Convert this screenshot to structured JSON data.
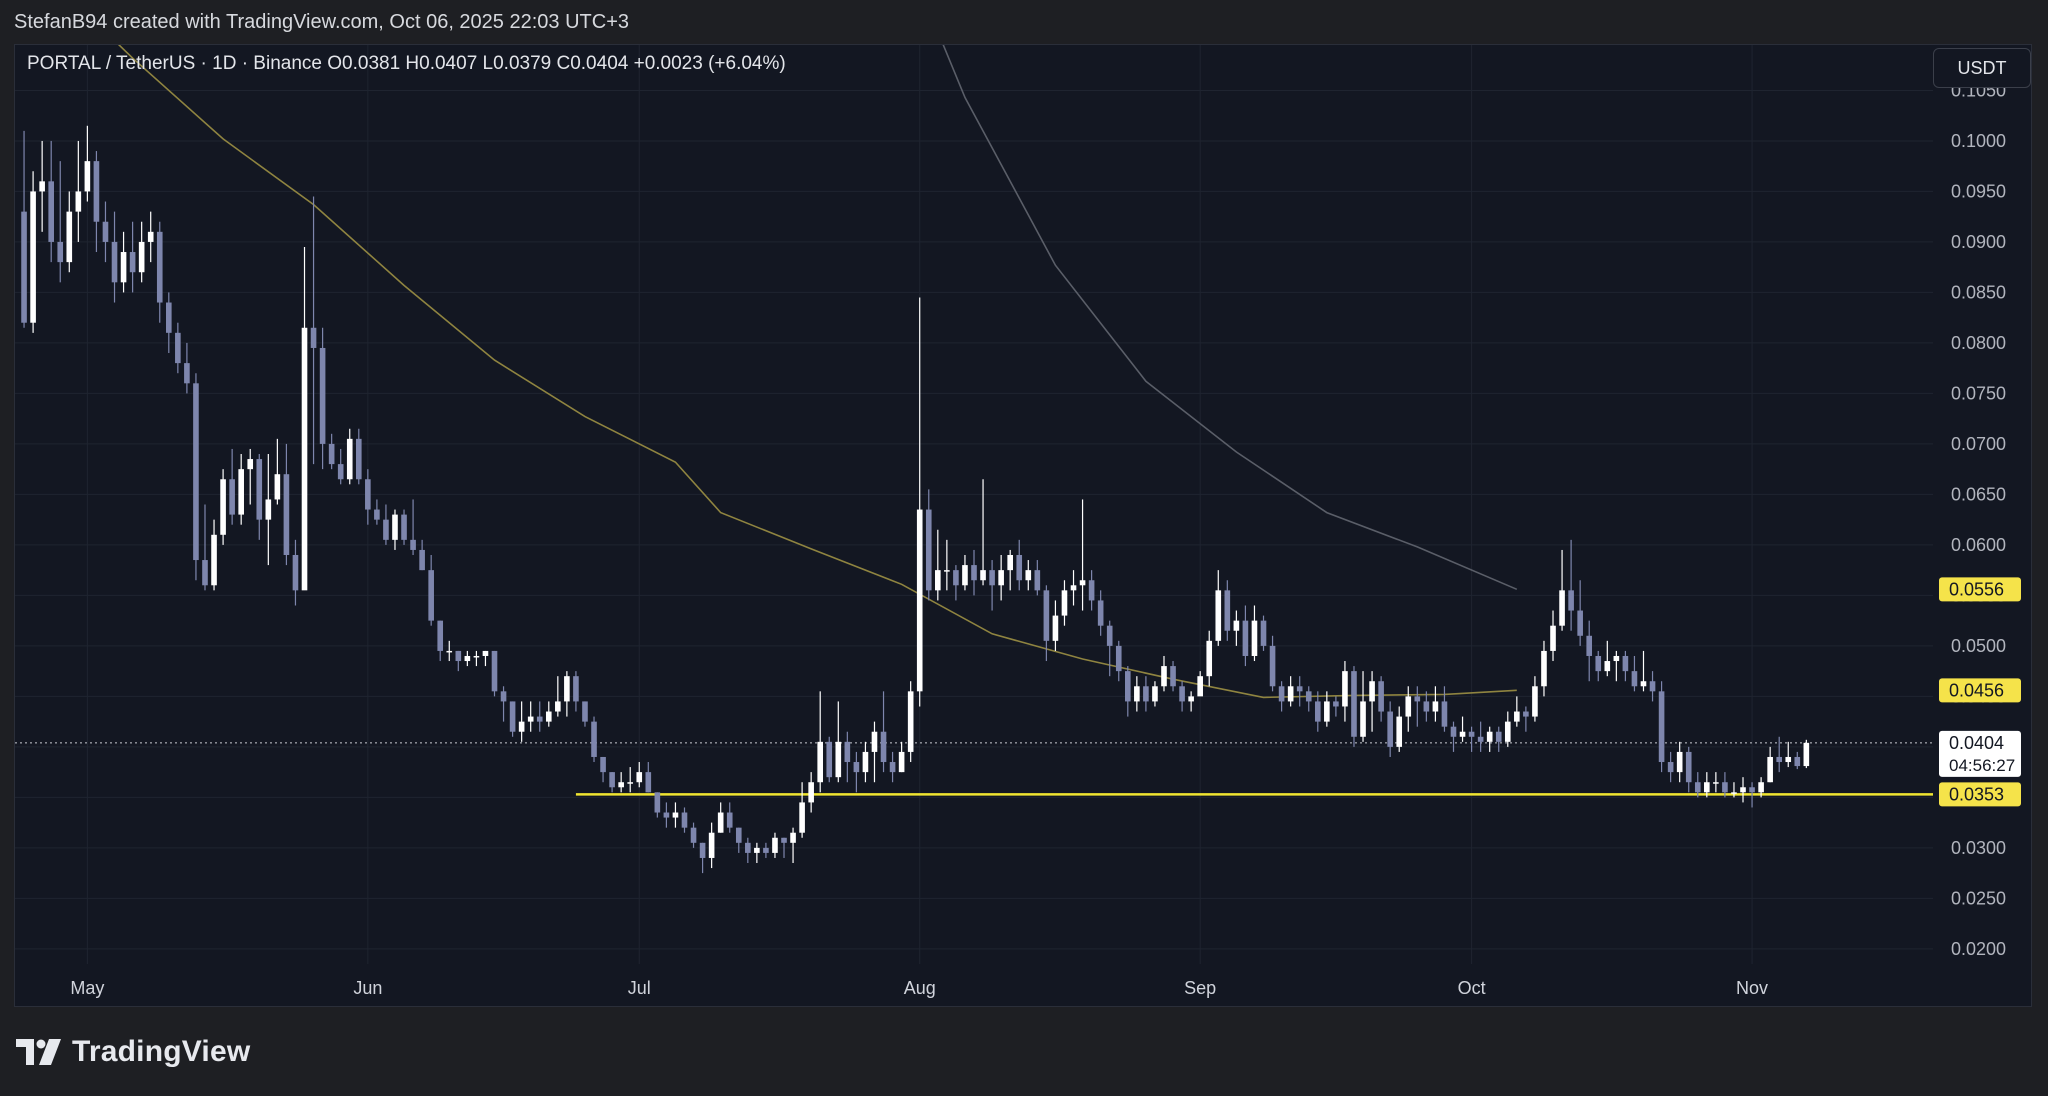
{
  "header": {
    "attribution": "StefanB94 created with TradingView.com, Oct 06, 2025 22:03 UTC+3"
  },
  "symbol_info": "PORTAL / TetherUS · 1D · Binance  O0.0381  H0.0407  L0.0379  C0.0404  +0.0023 (+6.04%)",
  "currency": "USDT",
  "brand": {
    "name": "TradingView",
    "logo_icon": "tradingview-logo-icon"
  },
  "colors": {
    "background": "#131722",
    "page": "#1e1f23",
    "grid": "#1f2430",
    "bull_candle": "#ffffff",
    "bear_candle": "#7e86ad",
    "ma_short": "#8f8440",
    "ma_long": "#5a5e68",
    "support_line": "#f0e531",
    "label_yellow": "#f5e34a"
  },
  "chart_data": {
    "type": "candlestick",
    "ylim": [
      0.0185,
      0.1095
    ],
    "y_ticks": [
      "0.1050",
      "0.1000",
      "0.0950",
      "0.0900",
      "0.0850",
      "0.0800",
      "0.0750",
      "0.0700",
      "0.0650",
      "0.0600",
      "0.0550",
      "0.0500",
      "0.0450",
      "0.0400",
      "0.0350",
      "0.0300",
      "0.0250",
      "0.0200"
    ],
    "x_ticks": [
      {
        "label": "May",
        "date": "2025-05-01"
      },
      {
        "label": "Jun",
        "date": "2025-06-01"
      },
      {
        "label": "Jul",
        "date": "2025-07-01"
      },
      {
        "label": "Aug",
        "date": "2025-08-01"
      },
      {
        "label": "Sep",
        "date": "2025-09-01"
      },
      {
        "label": "Oct",
        "date": "2025-10-01"
      },
      {
        "label": "Nov",
        "date": "2025-11-01"
      }
    ],
    "xlim": [
      "2025-04-23",
      "2025-11-21"
    ],
    "first_candle_date": "2025-04-24",
    "candles": [
      [
        0.093,
        0.082,
        0.101,
        0.0815
      ],
      [
        0.082,
        0.095,
        0.097,
        0.081
      ],
      [
        0.095,
        0.096,
        0.1,
        0.091
      ],
      [
        0.096,
        0.09,
        0.1,
        0.088
      ],
      [
        0.09,
        0.088,
        0.098,
        0.086
      ],
      [
        0.088,
        0.093,
        0.095,
        0.087
      ],
      [
        0.093,
        0.095,
        0.1,
        0.09
      ],
      [
        0.095,
        0.098,
        0.1015,
        0.094
      ],
      [
        0.098,
        0.092,
        0.099,
        0.089
      ],
      [
        0.092,
        0.09,
        0.094,
        0.088
      ],
      [
        0.09,
        0.086,
        0.093,
        0.084
      ],
      [
        0.086,
        0.089,
        0.091,
        0.085
      ],
      [
        0.089,
        0.087,
        0.092,
        0.085
      ],
      [
        0.087,
        0.09,
        0.092,
        0.086
      ],
      [
        0.09,
        0.091,
        0.093,
        0.088
      ],
      [
        0.091,
        0.084,
        0.092,
        0.082
      ],
      [
        0.084,
        0.081,
        0.085,
        0.079
      ],
      [
        0.081,
        0.078,
        0.082,
        0.077
      ],
      [
        0.078,
        0.076,
        0.08,
        0.075
      ],
      [
        0.076,
        0.0585,
        0.077,
        0.0565
      ],
      [
        0.0585,
        0.056,
        0.064,
        0.0555
      ],
      [
        0.056,
        0.061,
        0.0625,
        0.0555
      ],
      [
        0.061,
        0.0665,
        0.0675,
        0.06
      ],
      [
        0.0665,
        0.063,
        0.0695,
        0.062
      ],
      [
        0.063,
        0.0675,
        0.069,
        0.062
      ],
      [
        0.0675,
        0.0685,
        0.0695,
        0.064
      ],
      [
        0.0685,
        0.0625,
        0.069,
        0.0605
      ],
      [
        0.0625,
        0.0645,
        0.069,
        0.058
      ],
      [
        0.0645,
        0.067,
        0.0705,
        0.064
      ],
      [
        0.067,
        0.059,
        0.07,
        0.058
      ],
      [
        0.059,
        0.0555,
        0.0605,
        0.054
      ],
      [
        0.0555,
        0.0815,
        0.0895,
        0.056
      ],
      [
        0.0815,
        0.0795,
        0.0945,
        0.068
      ],
      [
        0.0795,
        0.07,
        0.0815,
        0.0675
      ],
      [
        0.07,
        0.068,
        0.071,
        0.0675
      ],
      [
        0.068,
        0.0665,
        0.0695,
        0.066
      ],
      [
        0.0665,
        0.0705,
        0.0715,
        0.066
      ],
      [
        0.0705,
        0.0665,
        0.0715,
        0.066
      ],
      [
        0.0665,
        0.0635,
        0.0675,
        0.062
      ],
      [
        0.0635,
        0.0625,
        0.0645,
        0.062
      ],
      [
        0.0625,
        0.0605,
        0.064,
        0.06
      ],
      [
        0.0605,
        0.063,
        0.0635,
        0.0595
      ],
      [
        0.063,
        0.0605,
        0.0635,
        0.06
      ],
      [
        0.0605,
        0.0595,
        0.0645,
        0.059
      ],
      [
        0.0595,
        0.0575,
        0.0605,
        0.0575
      ],
      [
        0.0575,
        0.0525,
        0.059,
        0.052
      ],
      [
        0.0525,
        0.0495,
        0.0525,
        0.0485
      ],
      [
        0.0495,
        0.0495,
        0.0505,
        0.0485
      ],
      [
        0.0495,
        0.0485,
        0.0495,
        0.0475
      ],
      [
        0.0485,
        0.049,
        0.0495,
        0.048
      ],
      [
        0.049,
        0.049,
        0.0495,
        0.048
      ],
      [
        0.049,
        0.0495,
        0.0495,
        0.048
      ],
      [
        0.0495,
        0.0455,
        0.0495,
        0.045
      ],
      [
        0.0455,
        0.0445,
        0.046,
        0.0425
      ],
      [
        0.0445,
        0.0415,
        0.0445,
        0.041
      ],
      [
        0.0415,
        0.0425,
        0.0445,
        0.0405
      ],
      [
        0.0425,
        0.043,
        0.0445,
        0.0415
      ],
      [
        0.043,
        0.0425,
        0.0445,
        0.0415
      ],
      [
        0.0425,
        0.0435,
        0.0445,
        0.042
      ],
      [
        0.0435,
        0.0445,
        0.047,
        0.043
      ],
      [
        0.0445,
        0.047,
        0.0475,
        0.043
      ],
      [
        0.047,
        0.0445,
        0.0475,
        0.0435
      ],
      [
        0.0445,
        0.0425,
        0.0445,
        0.042
      ],
      [
        0.0425,
        0.039,
        0.043,
        0.0385
      ],
      [
        0.039,
        0.0375,
        0.039,
        0.0365
      ],
      [
        0.0375,
        0.036,
        0.0375,
        0.0355
      ],
      [
        0.036,
        0.0365,
        0.0375,
        0.0355
      ],
      [
        0.0365,
        0.0365,
        0.038,
        0.0355
      ],
      [
        0.0365,
        0.0375,
        0.0385,
        0.036
      ],
      [
        0.0375,
        0.0355,
        0.0385,
        0.0355
      ],
      [
        0.0355,
        0.0335,
        0.0355,
        0.033
      ],
      [
        0.0335,
        0.033,
        0.0345,
        0.032
      ],
      [
        0.033,
        0.0335,
        0.0345,
        0.032
      ],
      [
        0.0335,
        0.032,
        0.034,
        0.0315
      ],
      [
        0.032,
        0.0305,
        0.0325,
        0.03
      ],
      [
        0.0305,
        0.029,
        0.0305,
        0.0275
      ],
      [
        0.029,
        0.0315,
        0.0325,
        0.028
      ],
      [
        0.0315,
        0.0335,
        0.0345,
        0.0315
      ],
      [
        0.0335,
        0.032,
        0.0345,
        0.0315
      ],
      [
        0.032,
        0.0305,
        0.032,
        0.0295
      ],
      [
        0.0305,
        0.0295,
        0.031,
        0.0285
      ],
      [
        0.0295,
        0.03,
        0.0305,
        0.0285
      ],
      [
        0.03,
        0.0295,
        0.0305,
        0.029
      ],
      [
        0.0295,
        0.031,
        0.0315,
        0.029
      ],
      [
        0.031,
        0.0305,
        0.031,
        0.029
      ],
      [
        0.0305,
        0.0315,
        0.032,
        0.0285
      ],
      [
        0.0315,
        0.0345,
        0.0365,
        0.031
      ],
      [
        0.0345,
        0.0365,
        0.0375,
        0.0335
      ],
      [
        0.0365,
        0.0405,
        0.0455,
        0.0355
      ],
      [
        0.0405,
        0.037,
        0.041,
        0.0365
      ],
      [
        0.037,
        0.0405,
        0.0445,
        0.0365
      ],
      [
        0.0405,
        0.0385,
        0.0415,
        0.0365
      ],
      [
        0.0385,
        0.0375,
        0.0395,
        0.0355
      ],
      [
        0.0375,
        0.0395,
        0.0405,
        0.0365
      ],
      [
        0.0395,
        0.0415,
        0.0425,
        0.0365
      ],
      [
        0.0415,
        0.0385,
        0.0455,
        0.0375
      ],
      [
        0.0385,
        0.0375,
        0.0395,
        0.0365
      ],
      [
        0.0375,
        0.0395,
        0.0405,
        0.0375
      ],
      [
        0.0395,
        0.0455,
        0.0465,
        0.0385
      ],
      [
        0.0455,
        0.0635,
        0.0845,
        0.044
      ],
      [
        0.0635,
        0.0555,
        0.0655,
        0.0545
      ],
      [
        0.0555,
        0.0575,
        0.0615,
        0.0545
      ],
      [
        0.0575,
        0.0575,
        0.0605,
        0.0555
      ],
      [
        0.0575,
        0.056,
        0.058,
        0.0545
      ],
      [
        0.056,
        0.058,
        0.059,
        0.0555
      ],
      [
        0.058,
        0.0565,
        0.0595,
        0.055
      ],
      [
        0.0565,
        0.0575,
        0.0665,
        0.056
      ],
      [
        0.0575,
        0.056,
        0.0585,
        0.0535
      ],
      [
        0.056,
        0.0575,
        0.059,
        0.0545
      ],
      [
        0.0575,
        0.059,
        0.0595,
        0.0555
      ],
      [
        0.059,
        0.0565,
        0.0605,
        0.0555
      ],
      [
        0.0565,
        0.0575,
        0.0585,
        0.0555
      ],
      [
        0.0575,
        0.0555,
        0.0585,
        0.055
      ],
      [
        0.0555,
        0.0505,
        0.056,
        0.0485
      ],
      [
        0.0505,
        0.053,
        0.0545,
        0.0495
      ],
      [
        0.053,
        0.0555,
        0.0565,
        0.052
      ],
      [
        0.0555,
        0.056,
        0.0575,
        0.054
      ],
      [
        0.056,
        0.0565,
        0.0645,
        0.0535
      ],
      [
        0.0565,
        0.0545,
        0.0575,
        0.0535
      ],
      [
        0.0545,
        0.052,
        0.0555,
        0.051
      ],
      [
        0.052,
        0.05,
        0.0525,
        0.047
      ],
      [
        0.05,
        0.0475,
        0.0505,
        0.0465
      ],
      [
        0.0475,
        0.0445,
        0.048,
        0.043
      ],
      [
        0.0445,
        0.046,
        0.047,
        0.0435
      ],
      [
        0.046,
        0.0445,
        0.047,
        0.0435
      ],
      [
        0.0445,
        0.046,
        0.0465,
        0.044
      ],
      [
        0.046,
        0.048,
        0.049,
        0.0455
      ],
      [
        0.048,
        0.046,
        0.0485,
        0.0455
      ],
      [
        0.046,
        0.0445,
        0.0465,
        0.0435
      ],
      [
        0.0445,
        0.045,
        0.0455,
        0.0435
      ],
      [
        0.045,
        0.047,
        0.0475,
        0.0455
      ],
      [
        0.047,
        0.0505,
        0.0515,
        0.046
      ],
      [
        0.0505,
        0.0555,
        0.0575,
        0.05
      ],
      [
        0.0555,
        0.0515,
        0.0565,
        0.0505
      ],
      [
        0.0515,
        0.0525,
        0.0535,
        0.05
      ],
      [
        0.0525,
        0.049,
        0.054,
        0.048
      ],
      [
        0.049,
        0.0525,
        0.054,
        0.0485
      ],
      [
        0.0525,
        0.05,
        0.053,
        0.0495
      ],
      [
        0.05,
        0.046,
        0.051,
        0.0455
      ],
      [
        0.046,
        0.0445,
        0.0465,
        0.0435
      ],
      [
        0.0445,
        0.046,
        0.047,
        0.044
      ],
      [
        0.046,
        0.0455,
        0.047,
        0.044
      ],
      [
        0.0455,
        0.0445,
        0.046,
        0.0435
      ],
      [
        0.0445,
        0.0425,
        0.0455,
        0.0415
      ],
      [
        0.0425,
        0.0445,
        0.0455,
        0.042
      ],
      [
        0.0445,
        0.044,
        0.045,
        0.043
      ],
      [
        0.044,
        0.0475,
        0.0485,
        0.0425
      ],
      [
        0.0475,
        0.041,
        0.048,
        0.04
      ],
      [
        0.041,
        0.0445,
        0.0475,
        0.0405
      ],
      [
        0.0445,
        0.0465,
        0.0475,
        0.0415
      ],
      [
        0.0465,
        0.0435,
        0.047,
        0.0425
      ],
      [
        0.0435,
        0.04,
        0.0445,
        0.039
      ],
      [
        0.04,
        0.043,
        0.044,
        0.0395
      ],
      [
        0.043,
        0.045,
        0.046,
        0.0415
      ],
      [
        0.045,
        0.0445,
        0.046,
        0.042
      ],
      [
        0.0445,
        0.0435,
        0.0455,
        0.0425
      ],
      [
        0.0435,
        0.0445,
        0.046,
        0.0425
      ],
      [
        0.0445,
        0.042,
        0.046,
        0.0415
      ],
      [
        0.042,
        0.041,
        0.0425,
        0.0395
      ],
      [
        0.041,
        0.0415,
        0.043,
        0.0405
      ],
      [
        0.0415,
        0.041,
        0.042,
        0.0395
      ],
      [
        0.041,
        0.0405,
        0.0425,
        0.0395
      ],
      [
        0.0405,
        0.0415,
        0.042,
        0.0395
      ],
      [
        0.0415,
        0.0405,
        0.042,
        0.0395
      ],
      [
        0.0405,
        0.0425,
        0.0435,
        0.04
      ],
      [
        0.0425,
        0.0435,
        0.045,
        0.042
      ],
      [
        0.0435,
        0.043,
        0.044,
        0.0415
      ],
      [
        0.043,
        0.046,
        0.047,
        0.0425
      ],
      [
        0.046,
        0.0495,
        0.0505,
        0.045
      ],
      [
        0.0495,
        0.052,
        0.0535,
        0.0485
      ],
      [
        0.052,
        0.0555,
        0.0595,
        0.0515
      ],
      [
        0.0555,
        0.0535,
        0.0605,
        0.0515
      ],
      [
        0.0535,
        0.051,
        0.0565,
        0.05
      ],
      [
        0.051,
        0.049,
        0.0525,
        0.0465
      ],
      [
        0.049,
        0.0475,
        0.0495,
        0.0465
      ],
      [
        0.0475,
        0.0485,
        0.0505,
        0.047
      ],
      [
        0.0485,
        0.049,
        0.0495,
        0.0465
      ],
      [
        0.049,
        0.0475,
        0.0495,
        0.0465
      ],
      [
        0.0475,
        0.046,
        0.049,
        0.0455
      ],
      [
        0.046,
        0.0465,
        0.0495,
        0.0455
      ],
      [
        0.0465,
        0.0455,
        0.0475,
        0.0445
      ],
      [
        0.0455,
        0.0385,
        0.0465,
        0.0375
      ],
      [
        0.0385,
        0.0375,
        0.0395,
        0.0365
      ],
      [
        0.0375,
        0.0395,
        0.0405,
        0.0365
      ],
      [
        0.0395,
        0.0365,
        0.04,
        0.0355
      ],
      [
        0.0365,
        0.0355,
        0.0375,
        0.035
      ],
      [
        0.0355,
        0.0365,
        0.0375,
        0.035
      ],
      [
        0.0365,
        0.0365,
        0.0375,
        0.0355
      ],
      [
        0.0365,
        0.0355,
        0.0375,
        0.035
      ],
      [
        0.0355,
        0.0355,
        0.0365,
        0.035
      ],
      [
        0.0355,
        0.036,
        0.037,
        0.0345
      ],
      [
        0.036,
        0.0355,
        0.0365,
        0.034
      ],
      [
        0.0355,
        0.0365,
        0.037,
        0.035
      ],
      [
        0.0365,
        0.039,
        0.04,
        0.0365
      ],
      [
        0.039,
        0.0385,
        0.041,
        0.0375
      ],
      [
        0.0385,
        0.039,
        0.0405,
        0.038
      ],
      [
        0.039,
        0.0381,
        0.0395,
        0.0378
      ],
      [
        0.0381,
        0.0404,
        0.0407,
        0.0379
      ]
    ],
    "moving_averages": [
      {
        "points": [
          [
            "2025-04-23",
            0.1195
          ],
          [
            "2025-05-06",
            0.1082
          ],
          [
            "2025-05-16",
            0.1002
          ],
          [
            "2025-05-26",
            0.0937
          ],
          [
            "2025-06-05",
            0.0857
          ],
          [
            "2025-06-15",
            0.0783
          ],
          [
            "2025-06-25",
            0.0727
          ],
          [
            "2025-07-05",
            0.0682
          ],
          [
            "2025-07-10",
            0.0632
          ],
          [
            "2025-07-20",
            0.0596
          ],
          [
            "2025-07-30",
            0.0561
          ],
          [
            "2025-08-09",
            0.0512
          ],
          [
            "2025-08-19",
            0.0487
          ],
          [
            "2025-08-29",
            0.0467
          ],
          [
            "2025-09-08",
            0.0449
          ],
          [
            "2025-09-18",
            0.0451
          ],
          [
            "2025-09-28",
            0.0452
          ],
          [
            "2025-10-06",
            0.0456
          ]
        ]
      },
      {
        "points": [
          [
            "2025-07-27",
            0.126
          ],
          [
            "2025-08-06",
            0.1043
          ],
          [
            "2025-08-16",
            0.0877
          ],
          [
            "2025-08-26",
            0.0762
          ],
          [
            "2025-09-05",
            0.0692
          ],
          [
            "2025-09-15",
            0.0632
          ],
          [
            "2025-09-25",
            0.0598
          ],
          [
            "2025-10-06",
            0.0556
          ]
        ]
      }
    ],
    "support_line": {
      "start": "2025-06-24",
      "end": "2025-11-21",
      "value": 0.0353
    },
    "current_price": {
      "value": 0.0404,
      "label": "0.0404",
      "countdown": "04:56:27"
    },
    "price_labels": [
      {
        "value": 0.0556,
        "label": "0.0556"
      },
      {
        "value": 0.0456,
        "label": "0.0456"
      },
      {
        "value": 0.0353,
        "label": "0.0353"
      }
    ]
  }
}
